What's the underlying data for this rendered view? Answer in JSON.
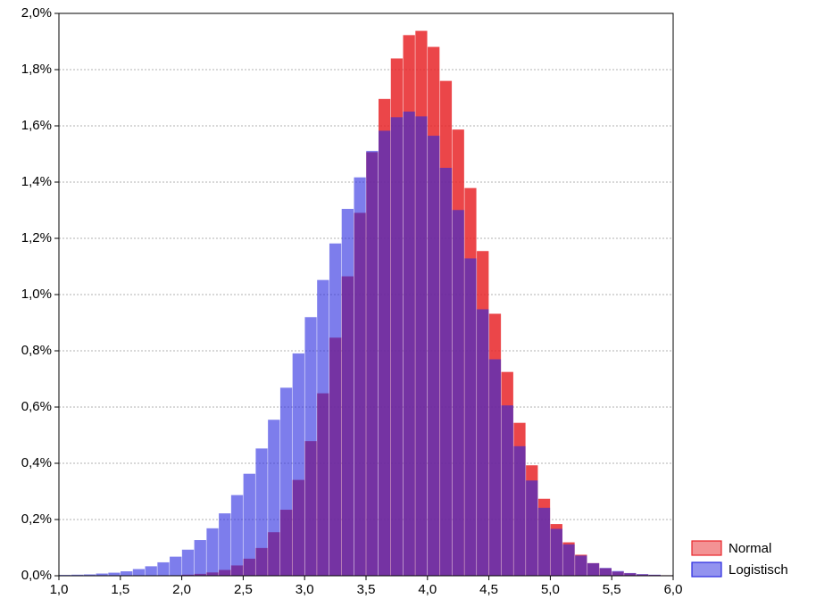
{
  "chart_data": {
    "type": "histogram",
    "bins": [
      1.0,
      1.1,
      1.2,
      1.3,
      1.4,
      1.5,
      1.6,
      1.7,
      1.8,
      1.9,
      2.0,
      2.1,
      2.2,
      2.3,
      2.4,
      2.5,
      2.6,
      2.7,
      2.8,
      2.9,
      3.0,
      3.1,
      3.2,
      3.3,
      3.4,
      3.5,
      3.6,
      3.7,
      3.8,
      3.9,
      4.0,
      4.1,
      4.2,
      4.3,
      4.4,
      4.5,
      4.6,
      4.7,
      4.8,
      4.9,
      5.0,
      5.1,
      5.2,
      5.3,
      5.4,
      5.5,
      5.6,
      5.7,
      5.8,
      5.9,
      6.0
    ],
    "series": [
      {
        "name": "Normal",
        "color": "#e8262a",
        "values": [
          0,
          0,
          0,
          0,
          0,
          0,
          0,
          0,
          0.001,
          0.001,
          0.003,
          0.006,
          0.011,
          0.02,
          0.036,
          0.06,
          0.098,
          0.154,
          0.234,
          0.34,
          0.478,
          0.648,
          0.846,
          1.064,
          1.29,
          1.506,
          1.695,
          1.839,
          1.922,
          1.937,
          1.88,
          1.759,
          1.586,
          1.378,
          1.154,
          0.931,
          0.724,
          0.543,
          0.392,
          0.273,
          0.183,
          0.118,
          0.074,
          0.044,
          0.026,
          0.014,
          0.008,
          0.004,
          0.002,
          0.001
        ]
      },
      {
        "name": "Logistisch",
        "color": "#2828e0",
        "values": [
          0.002,
          0.003,
          0.004,
          0.007,
          0.01,
          0.015,
          0.023,
          0.033,
          0.047,
          0.067,
          0.092,
          0.126,
          0.168,
          0.221,
          0.286,
          0.362,
          0.452,
          0.554,
          0.668,
          0.79,
          0.919,
          1.051,
          1.181,
          1.304,
          1.416,
          1.51,
          1.582,
          1.63,
          1.65,
          1.633,
          1.564,
          1.45,
          1.3,
          1.128,
          0.947,
          0.769,
          0.605,
          0.46,
          0.338,
          0.241,
          0.166,
          0.111,
          0.071,
          0.044,
          0.027,
          0.016,
          0.009,
          0.005,
          0.003,
          0.001
        ]
      }
    ],
    "xlim": [
      1.0,
      6.0
    ],
    "xticks": [
      {
        "value": 1.0,
        "label": "1,0"
      },
      {
        "value": 1.5,
        "label": "1,5"
      },
      {
        "value": 2.0,
        "label": "2,0"
      },
      {
        "value": 2.5,
        "label": "2,5"
      },
      {
        "value": 3.0,
        "label": "3,0"
      },
      {
        "value": 3.5,
        "label": "3,5"
      },
      {
        "value": 4.0,
        "label": "4,0"
      },
      {
        "value": 4.5,
        "label": "4,5"
      },
      {
        "value": 5.0,
        "label": "5,0"
      },
      {
        "value": 5.5,
        "label": "5,5"
      },
      {
        "value": 6.0,
        "label": "6,0"
      }
    ],
    "ylim": [
      0,
      2.0
    ],
    "yticks": [
      {
        "value": 0,
        "label": "0,0%"
      },
      {
        "value": 0.2,
        "label": "0,2%"
      },
      {
        "value": 0.4,
        "label": "0,4%"
      },
      {
        "value": 0.6,
        "label": "0,6%"
      },
      {
        "value": 0.8,
        "label": "0,8%"
      },
      {
        "value": 1.0,
        "label": "1,0%"
      },
      {
        "value": 1.2,
        "label": "1,2%"
      },
      {
        "value": 1.4,
        "label": "1,4%"
      },
      {
        "value": 1.6,
        "label": "1,6%"
      },
      {
        "value": 1.8,
        "label": "1,8%"
      },
      {
        "value": 2.0,
        "label": "2,0%"
      }
    ],
    "grid": true,
    "legend": "lower-right"
  }
}
